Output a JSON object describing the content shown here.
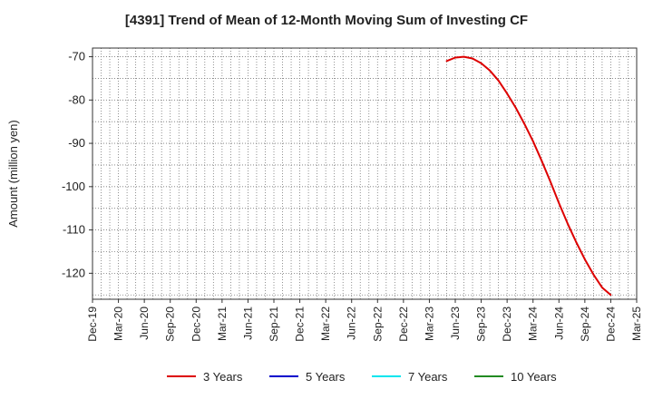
{
  "chart_data": {
    "type": "line",
    "title": "[4391]  Trend of Mean of 12-Month Moving Sum of Investing CF",
    "xlabel": "",
    "ylabel": "Amount (million yen)",
    "ylim": [
      -126,
      -68
    ],
    "yticks": [
      -70,
      -80,
      -90,
      -100,
      -110,
      -120
    ],
    "x_tick_labels": [
      "Dec-19",
      "Mar-20",
      "Jun-20",
      "Sep-20",
      "Dec-20",
      "Mar-21",
      "Jun-21",
      "Sep-21",
      "Dec-21",
      "Mar-22",
      "Jun-22",
      "Sep-22",
      "Dec-22",
      "Mar-23",
      "Jun-23",
      "Sep-23",
      "Dec-23",
      "Mar-24",
      "Jun-24",
      "Sep-24",
      "Dec-24",
      "Mar-25"
    ],
    "grid": true,
    "legend_position": "bottom",
    "series": [
      {
        "name": "3 Years",
        "color": "#dd0000",
        "x": [
          "May-23",
          "Jun-23",
          "Jul-23",
          "Aug-23",
          "Sep-23",
          "Oct-23",
          "Nov-23",
          "Dec-23",
          "Jan-24",
          "Feb-24",
          "Mar-24",
          "Apr-24",
          "May-24",
          "Jun-24",
          "Jul-24",
          "Aug-24",
          "Sep-24",
          "Oct-24",
          "Nov-24",
          "Dec-24"
        ],
        "values": [
          -71.0,
          -70.2,
          -70.0,
          -70.4,
          -71.5,
          -73.2,
          -75.5,
          -78.5,
          -81.8,
          -85.5,
          -89.5,
          -94.0,
          -98.8,
          -103.8,
          -108.5,
          -112.8,
          -116.8,
          -120.3,
          -123.3,
          -125.0
        ]
      },
      {
        "name": "5 Years",
        "color": "#0000cc",
        "x": [],
        "values": []
      },
      {
        "name": "7 Years",
        "color": "#00e5ee",
        "x": [],
        "values": []
      },
      {
        "name": "10 Years",
        "color": "#228b22",
        "x": [],
        "values": []
      }
    ]
  }
}
